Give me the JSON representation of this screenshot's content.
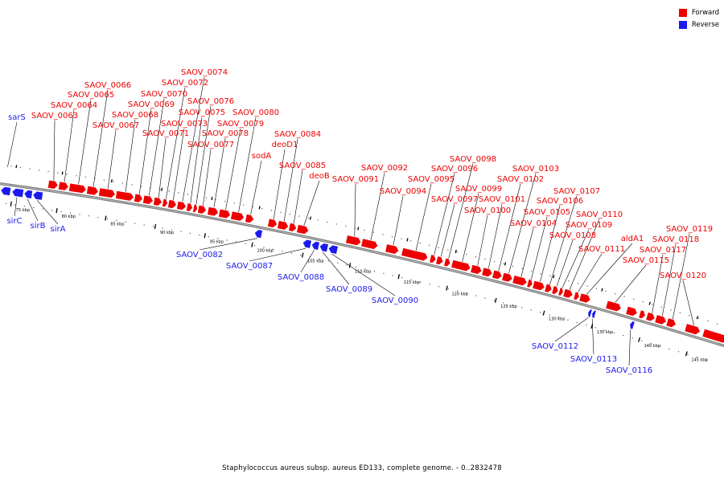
{
  "colors": {
    "forward": "#ee0000",
    "reverse": "#1a1aee",
    "backbone": "#7a7a7a",
    "leader": "#000000"
  },
  "legend": [
    {
      "label": "Forward",
      "color": "#ee0000"
    },
    {
      "label": "Reverse",
      "color": "#1a1aee"
    }
  ],
  "caption": "Staphylococcus aureus subsp. aureus ED133, complete genome. - 0..2832478",
  "ticks": [
    "75 kbp",
    "80 kbp",
    "85 kbp",
    "90 kbp",
    "95 kbp",
    "100 kbp",
    "105 kbp",
    "110 kbp",
    "115 kbp",
    "120 kbp",
    "125 kbp",
    "130 kbp",
    "135 kbp",
    "140 kbp",
    "145 kbp"
  ],
  "forward_labels": [
    "SAOV_0063",
    "SAOV_0064",
    "SAOV_0065",
    "SAOV_0066",
    "SAOV_0067",
    "SAOV_0068",
    "SAOV_0069",
    "SAOV_0070",
    "SAOV_0071",
    "SAOV_0072",
    "SAOV_0073",
    "SAOV_0074",
    "SAOV_0075",
    "SAOV_0076",
    "SAOV_0077",
    "SAOV_0078",
    "SAOV_0079",
    "SAOV_0080",
    "sodA",
    "deoD1",
    "SAOV_0084",
    "SAOV_0085",
    "deoB",
    "SAOV_0091",
    "SAOV_0092",
    "SAOV_0094",
    "SAOV_0095",
    "SAOV_0096",
    "SAOV_0097",
    "SAOV_0098",
    "SAOV_0099",
    "SAOV_0100",
    "SAOV_0101",
    "SAOV_0102",
    "SAOV_0103",
    "SAOV_0104",
    "SAOV_0105",
    "SAOV_0106",
    "SAOV_0107",
    "SAOV_0108",
    "SAOV_0109",
    "SAOV_0110",
    "SAOV_0111",
    "aldA1",
    "SAOV_0115",
    "SAOV_0117",
    "SAOV_0118",
    "SAOV_0119",
    "SAOV_0120"
  ],
  "reverse_labels": [
    "sarS",
    "sirC",
    "sirB",
    "sirA",
    "SAOV_0082",
    "SAOV_0087",
    "SAOV_0088",
    "SAOV_0089",
    "SAOV_0090",
    "SAOV_0112",
    "SAOV_0113",
    "SAOV_0116"
  ]
}
